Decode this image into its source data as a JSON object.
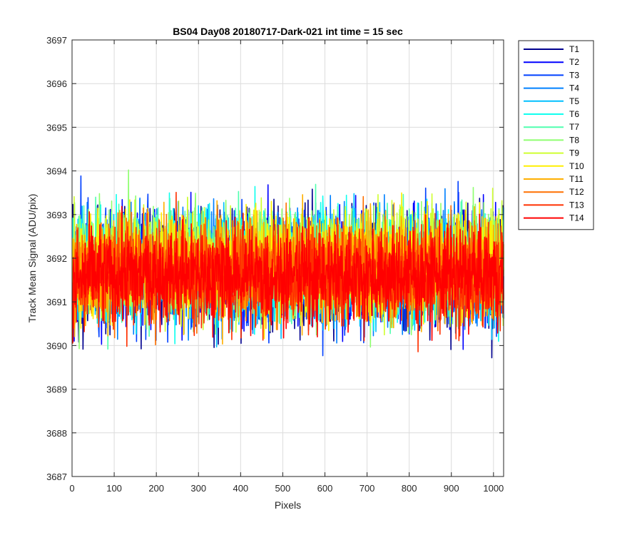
{
  "chart_data": {
    "type": "line",
    "title": "BS04 Day08 20180717-Dark-021 int time = 15 sec",
    "xlabel": "Pixels",
    "ylabel": "Track Mean Signal (ADU/pix)",
    "xlim": [
      0,
      1024
    ],
    "ylim": [
      3687,
      3697
    ],
    "xticks": [
      "0",
      "100",
      "200",
      "300",
      "400",
      "500",
      "600",
      "700",
      "800",
      "900",
      "1000"
    ],
    "yticks": [
      "3687",
      "3688",
      "3689",
      "3690",
      "3691",
      "3692",
      "3693",
      "3694",
      "3695",
      "3696",
      "3697"
    ],
    "grid": true,
    "legend_position": "outside-top-right",
    "n_points": 1024,
    "series": [
      {
        "name": "T1",
        "color": "#00008f",
        "mean": 3691.8,
        "spread": 1.05
      },
      {
        "name": "T2",
        "color": "#0000ff",
        "mean": 3691.8,
        "spread": 1.05
      },
      {
        "name": "T3",
        "color": "#0040ff",
        "mean": 3691.8,
        "spread": 1.05
      },
      {
        "name": "T4",
        "color": "#0080ff",
        "mean": 3691.8,
        "spread": 1.0
      },
      {
        "name": "T5",
        "color": "#00bfff",
        "mean": 3691.8,
        "spread": 1.0
      },
      {
        "name": "T6",
        "color": "#10ffef",
        "mean": 3691.9,
        "spread": 1.0
      },
      {
        "name": "T7",
        "color": "#50ffaf",
        "mean": 3691.9,
        "spread": 1.0
      },
      {
        "name": "T8",
        "color": "#8fff70",
        "mean": 3691.9,
        "spread": 1.0
      },
      {
        "name": "T9",
        "color": "#cfff30",
        "mean": 3691.9,
        "spread": 0.95
      },
      {
        "name": "T10",
        "color": "#ffef00",
        "mean": 3691.9,
        "spread": 0.95
      },
      {
        "name": "T11",
        "color": "#ffaf00",
        "mean": 3691.8,
        "spread": 0.95
      },
      {
        "name": "T12",
        "color": "#ff7000",
        "mean": 3691.8,
        "spread": 0.9
      },
      {
        "name": "T13",
        "color": "#ff3000",
        "mean": 3691.6,
        "spread": 0.9
      },
      {
        "name": "T14",
        "color": "#ff0000",
        "mean": 3691.6,
        "spread": 0.85
      }
    ]
  }
}
